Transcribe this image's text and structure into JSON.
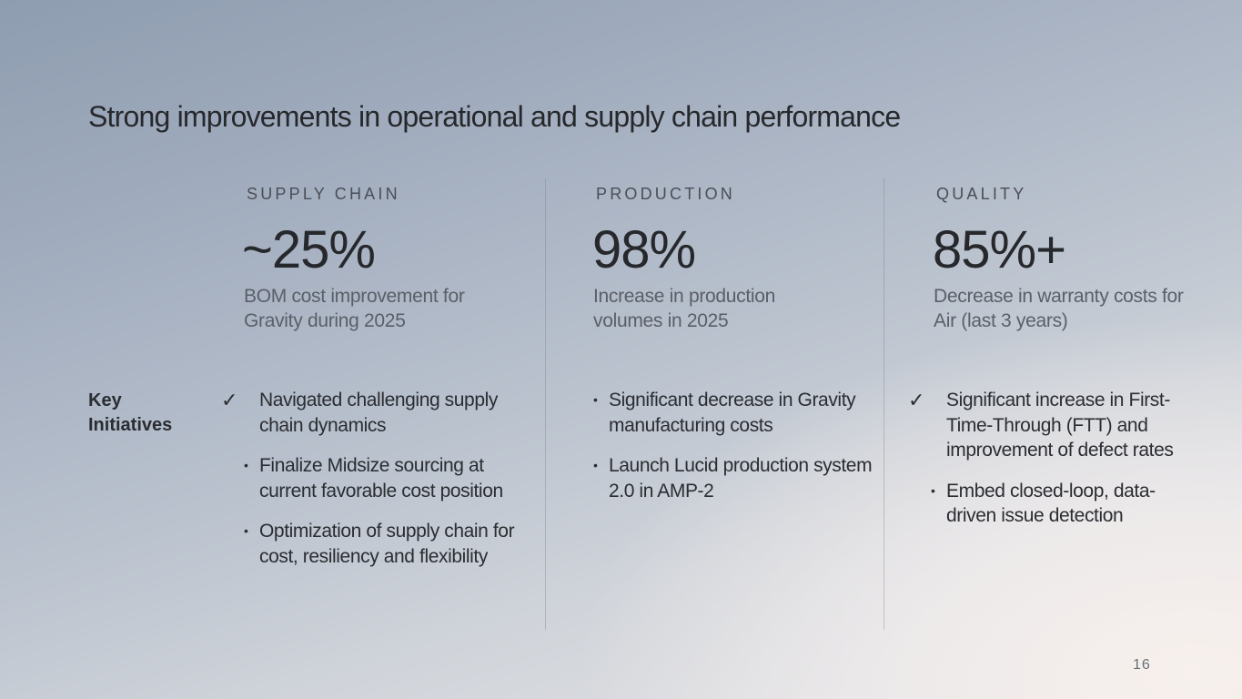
{
  "title": "Strong improvements in operational and supply chain performance",
  "key_initiatives_label": "Key Initiatives",
  "columns": [
    {
      "header": "SUPPLY CHAIN",
      "metric": "~25%",
      "description": "BOM cost improvement for Gravity during 2025",
      "initiatives": [
        {
          "marker": "✓",
          "text": "Navigated challenging supply chain dynamics"
        },
        {
          "marker": "•",
          "text": "Finalize Midsize sourcing at current favorable cost position"
        },
        {
          "marker": "•",
          "text": "Optimization of supply chain for cost, resiliency and flexibility"
        }
      ]
    },
    {
      "header": "PRODUCTION",
      "metric": "98%",
      "description": "Increase in production volumes in 2025",
      "initiatives": [
        {
          "marker": "•",
          "text": "Significant decrease in Gravity manufacturing costs"
        },
        {
          "marker": "•",
          "text": "Launch Lucid production system 2.0 in AMP-2"
        }
      ]
    },
    {
      "header": "QUALITY",
      "metric": "85%+",
      "description": "Decrease in warranty costs for Air (last 3 years)",
      "initiatives": [
        {
          "marker": "✓",
          "text": "Significant increase in First-Time-Through (FTT) and improvement of defect rates"
        },
        {
          "marker": "•",
          "text": "Embed closed-loop, data-driven issue detection"
        }
      ]
    }
  ],
  "page_number": "16"
}
